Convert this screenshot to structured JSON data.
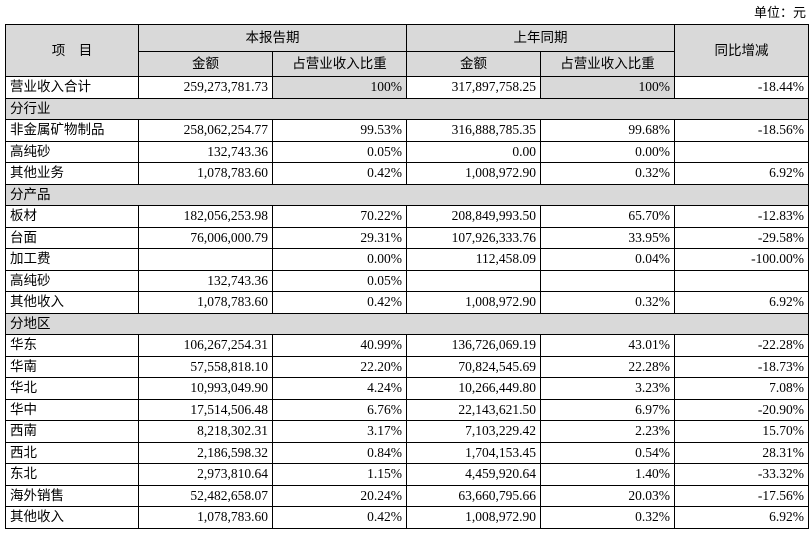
{
  "unit": "单位：元",
  "table": {
    "header": {
      "item": "项　目",
      "current": "本报告期",
      "previous": "上年同期",
      "change": "同比增减",
      "amount": "金额",
      "ratio": "占营业收入比重",
      "amount_prev": "金额",
      "ratio_prev": "占营业收入比重"
    },
    "rows": [
      [
        "营业收入合计",
        "259,273,781.73",
        "100%",
        "317,897,758.25",
        "100%",
        "-18.44%"
      ],
      [
        "分行业"
      ],
      [
        "非金属矿物制品",
        "258,062,254.77",
        "99.53%",
        "316,888,785.35",
        "99.68%",
        "-18.56%"
      ],
      [
        "高纯砂",
        "132,743.36",
        "0.05%",
        "0.00",
        "0.00%",
        null
      ],
      [
        "其他业务",
        "1,078,783.60",
        "0.42%",
        "1,008,972.90",
        "0.32%",
        "6.92%"
      ],
      [
        "分产品"
      ],
      [
        "板材",
        "182,056,253.98",
        "70.22%",
        "208,849,993.50",
        "65.70%",
        "-12.83%"
      ],
      [
        "台面",
        "76,006,000.79",
        "29.31%",
        "107,926,333.76",
        "33.95%",
        "-29.58%"
      ],
      [
        "加工费",
        null,
        "0.00%",
        "112,458.09",
        "0.04%",
        "-100.00%"
      ],
      [
        "高纯砂",
        "132,743.36",
        "0.05%",
        null,
        null,
        null
      ],
      [
        "其他收入",
        "1,078,783.60",
        "0.42%",
        "1,008,972.90",
        "0.32%",
        "6.92%"
      ],
      [
        "分地区"
      ],
      [
        "华东",
        "106,267,254.31",
        "40.99%",
        "136,726,069.19",
        "43.01%",
        "-22.28%"
      ],
      [
        "华南",
        "57,558,818.10",
        "22.20%",
        "70,824,545.69",
        "22.28%",
        "-18.73%"
      ],
      [
        "华北",
        "10,993,049.90",
        "4.24%",
        "10,266,449.80",
        "3.23%",
        "7.08%"
      ],
      [
        "华中",
        "17,514,506.48",
        "6.76%",
        "22,143,621.50",
        "6.97%",
        "-20.90%"
      ],
      [
        "西南",
        "8,218,302.31",
        "3.17%",
        "7,103,229.42",
        "2.23%",
        "15.70%"
      ],
      [
        "西北",
        "2,186,598.32",
        "0.84%",
        "1,704,153.45",
        "0.54%",
        "28.31%"
      ],
      [
        "东北",
        "2,973,810.64",
        "1.15%",
        "4,459,920.64",
        "1.40%",
        "-33.32%"
      ],
      [
        "海外销售",
        "52,482,658.07",
        "20.24%",
        "63,660,795.66",
        "20.03%",
        "-17.56%"
      ],
      [
        "其他收入",
        "1,078,783.60",
        "0.42%",
        "1,008,972.90",
        "0.32%",
        "6.92%"
      ]
    ]
  }
}
